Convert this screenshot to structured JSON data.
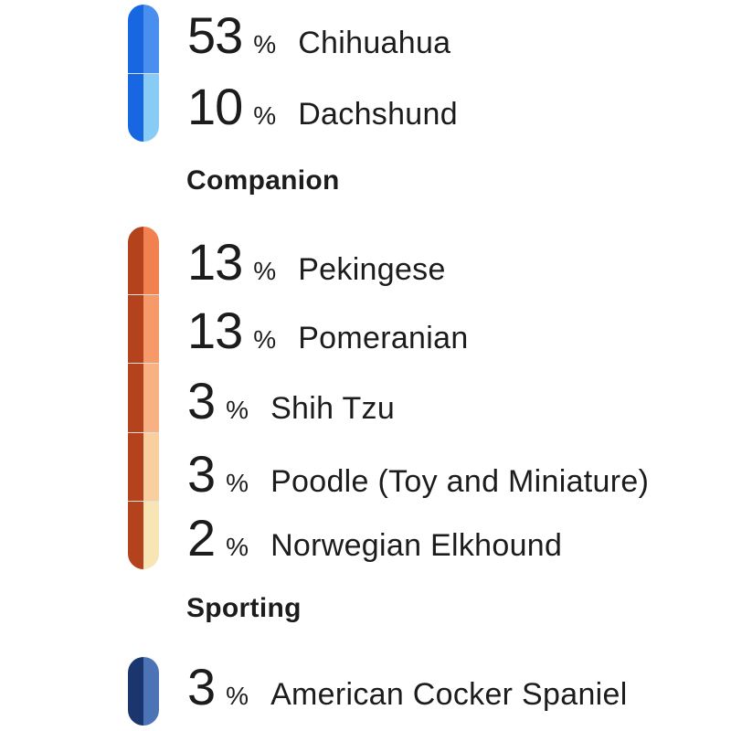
{
  "page": {
    "background": "#ffffff",
    "text_color": "#1c1c1c"
  },
  "chart_data": {
    "type": "bar",
    "orientation": "vertical-pictogram",
    "unit": "%",
    "legend_position": "none",
    "grid": false,
    "groups": [
      {
        "header": "",
        "bar_base_color": "#1767E2",
        "items": [
          {
            "value": "53",
            "unit": "%",
            "label": "Chihuahua",
            "color": "#4A8FF0"
          },
          {
            "value": "10",
            "unit": "%",
            "label": "Dachshund",
            "color": "#88CCF5"
          }
        ]
      },
      {
        "header": "Companion",
        "bar_base_color": "#B4431D",
        "items": [
          {
            "value": "13",
            "unit": "%",
            "label": "Pekingese",
            "color": "#F1814E"
          },
          {
            "value": "13",
            "unit": "%",
            "label": "Pomeranian",
            "color": "#F69A69"
          },
          {
            "value": "3",
            "unit": "%",
            "label": "Shih Tzu",
            "color": "#F8B183"
          },
          {
            "value": "3",
            "unit": "%",
            "label": "Poodle (Toy and Miniature)",
            "color": "#FACF9F"
          },
          {
            "value": "2",
            "unit": "%",
            "label": "Norwegian Elkhound",
            "color": "#F8E5B6"
          }
        ]
      },
      {
        "header": "Sporting",
        "bar_base_color": "#1B366F",
        "items": [
          {
            "value": "3",
            "unit": "%",
            "label": "American Cocker Spaniel",
            "color": "#4D73B7"
          }
        ]
      }
    ]
  }
}
